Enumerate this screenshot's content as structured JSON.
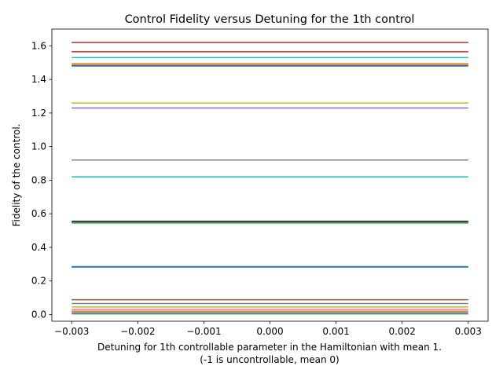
{
  "chart_data": {
    "type": "line",
    "title": "Control Fidelity versus Detuning for the 1th control",
    "xlabel_line1": "Detuning for 1th controllable parameter in the Hamiltonian with mean 1.",
    "xlabel_line2": "(-1 is uncontrollable, mean 0)",
    "ylabel": "Fidelity of the control.",
    "xlim": [
      -0.0033,
      0.0033
    ],
    "ylim": [
      -0.04,
      1.7
    ],
    "x": [
      -0.003,
      0.003
    ],
    "xticks": [
      -0.003,
      -0.002,
      -0.001,
      0.0,
      0.001,
      0.002,
      0.003
    ],
    "xtick_labels": [
      "−0.003",
      "−0.002",
      "−0.001",
      "0.000",
      "0.001",
      "0.002",
      "0.003"
    ],
    "yticks": [
      0.0,
      0.2,
      0.4,
      0.6,
      0.8,
      1.0,
      1.2,
      1.4,
      1.6
    ],
    "ytick_labels": [
      "0.0",
      "0.2",
      "0.4",
      "0.6",
      "0.8",
      "1.0",
      "1.2",
      "1.4",
      "1.6"
    ],
    "grid": false,
    "legend": "none",
    "series": [
      {
        "color": "#d62728",
        "values": [
          1.62,
          1.62
        ]
      },
      {
        "color": "#d62728",
        "values": [
          1.565,
          1.565
        ]
      },
      {
        "color": "#17becf",
        "values": [
          1.53,
          1.53
        ]
      },
      {
        "color": "#ff7f0e",
        "values": [
          1.495,
          1.495
        ]
      },
      {
        "color": "#8c564b",
        "values": [
          1.485,
          1.485
        ]
      },
      {
        "color": "#1f77b4",
        "values": [
          1.48,
          1.48
        ]
      },
      {
        "color": "#bcbd22",
        "values": [
          1.26,
          1.26
        ]
      },
      {
        "color": "#9467bd",
        "values": [
          1.23,
          1.23
        ]
      },
      {
        "color": "#7f7f7f",
        "values": [
          0.92,
          0.92
        ]
      },
      {
        "color": "#17becf",
        "values": [
          0.82,
          0.82
        ]
      },
      {
        "color": "#000000",
        "values": [
          0.555,
          0.555
        ]
      },
      {
        "color": "#7f7f7f",
        "values": [
          0.55,
          0.55
        ]
      },
      {
        "color": "#2ca02c",
        "values": [
          0.545,
          0.545
        ]
      },
      {
        "color": "#1f77b4",
        "values": [
          0.285,
          0.285
        ]
      },
      {
        "color": "#1f77b4",
        "values": [
          0.283,
          0.283
        ]
      },
      {
        "color": "#8c564b",
        "values": [
          0.088,
          0.088
        ]
      },
      {
        "color": "#7f7f7f",
        "values": [
          0.065,
          0.065
        ]
      },
      {
        "color": "#bcbd22",
        "values": [
          0.045,
          0.045
        ]
      },
      {
        "color": "#e377c2",
        "values": [
          0.03,
          0.03
        ]
      },
      {
        "color": "#ff7f0e",
        "values": [
          0.02,
          0.02
        ]
      },
      {
        "color": "#9467bd",
        "values": [
          0.012,
          0.012
        ]
      },
      {
        "color": "#2ca02c",
        "values": [
          0.004,
          0.004
        ]
      }
    ]
  }
}
